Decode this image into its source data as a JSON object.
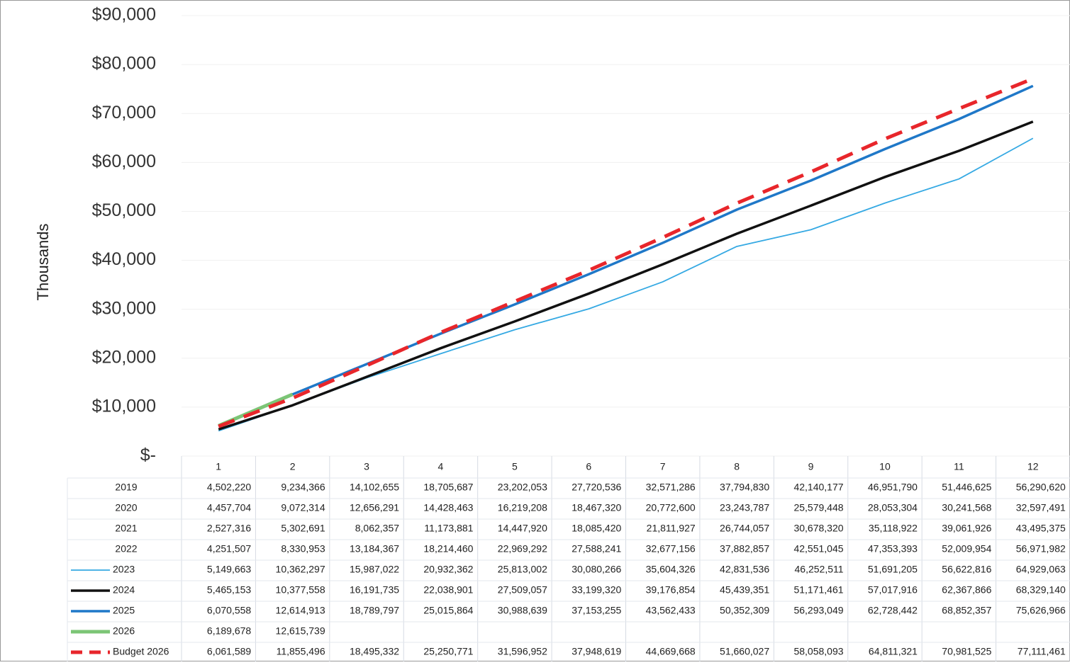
{
  "chart_data": {
    "type": "line",
    "y_axis_label": "Thousands",
    "categories": [
      "1",
      "2",
      "3",
      "4",
      "5",
      "6",
      "7",
      "8",
      "9",
      "10",
      "11",
      "12"
    ],
    "ylim": [
      0,
      90000000
    ],
    "yticks": [
      {
        "value": 0,
        "label": "$-"
      },
      {
        "value": 10000000,
        "label": "$10,000"
      },
      {
        "value": 20000000,
        "label": "$20,000"
      },
      {
        "value": 30000000,
        "label": "$30,000"
      },
      {
        "value": 40000000,
        "label": "$40,000"
      },
      {
        "value": 50000000,
        "label": "$50,000"
      },
      {
        "value": 60000000,
        "label": "$60,000"
      },
      {
        "value": 70000000,
        "label": "$70,000"
      },
      {
        "value": 80000000,
        "label": "$80,000"
      },
      {
        "value": 90000000,
        "label": "$90,000"
      }
    ],
    "grid": true,
    "series": [
      {
        "name": "2019",
        "values": [
          4502220,
          9234366,
          14102655,
          18705687,
          23202053,
          27720536,
          32571286,
          37794830,
          42140177,
          46951790,
          51446625,
          56290620
        ],
        "value_labels": [
          "4,502,220",
          "9,234,366",
          "14,102,655",
          "18,705,687",
          "23,202,053",
          "27,720,536",
          "32,571,286",
          "37,794,830",
          "42,140,177",
          "46,951,790",
          "51,446,625",
          "56,290,620"
        ]
      },
      {
        "name": "2020",
        "values": [
          4457704,
          9072314,
          12656291,
          14428463,
          16219208,
          18467320,
          20772600,
          23243787,
          25579448,
          28053304,
          30241568,
          32597491
        ],
        "value_labels": [
          "4,457,704",
          "9,072,314",
          "12,656,291",
          "14,428,463",
          "16,219,208",
          "18,467,320",
          "20,772,600",
          "23,243,787",
          "25,579,448",
          "28,053,304",
          "30,241,568",
          "32,597,491"
        ]
      },
      {
        "name": "2021",
        "values": [
          2527316,
          5302691,
          8062357,
          11173881,
          14447920,
          18085420,
          21811927,
          26744057,
          30678320,
          35118922,
          39061926,
          43495375
        ],
        "value_labels": [
          "2,527,316",
          "5,302,691",
          "8,062,357",
          "11,173,881",
          "14,447,920",
          "18,085,420",
          "21,811,927",
          "26,744,057",
          "30,678,320",
          "35,118,922",
          "39,061,926",
          "43,495,375"
        ]
      },
      {
        "name": "2022",
        "values": [
          4251507,
          8330953,
          13184367,
          18214460,
          22969292,
          27588241,
          32677156,
          37882857,
          42551045,
          47353393,
          52009954,
          56971982
        ],
        "value_labels": [
          "4,251,507",
          "8,330,953",
          "13,184,367",
          "18,214,460",
          "22,969,292",
          "27,588,241",
          "32,677,156",
          "37,882,857",
          "42,551,045",
          "47,353,393",
          "52,009,954",
          "56,971,982"
        ]
      },
      {
        "name": "2023",
        "color": "#35a9e3",
        "line_width": 1.8,
        "values": [
          5149663,
          10362297,
          15987022,
          20932362,
          25813002,
          30080266,
          35604326,
          42831536,
          46252511,
          51691205,
          56622816,
          64929063
        ],
        "value_labels": [
          "5,149,663",
          "10,362,297",
          "15,987,022",
          "20,932,362",
          "25,813,002",
          "30,080,266",
          "35,604,326",
          "42,831,536",
          "46,252,511",
          "51,691,205",
          "56,622,816",
          "64,929,063"
        ]
      },
      {
        "name": "2024",
        "color": "#111111",
        "line_width": 3.5,
        "values": [
          5465153,
          10377558,
          16191735,
          22038901,
          27509057,
          33199320,
          39176854,
          45439351,
          51171461,
          57017916,
          62367866,
          68329140
        ],
        "value_labels": [
          "5,465,153",
          "10,377,558",
          "16,191,735",
          "22,038,901",
          "27,509,057",
          "33,199,320",
          "39,176,854",
          "45,439,351",
          "51,171,461",
          "57,017,916",
          "62,367,866",
          "68,329,140"
        ]
      },
      {
        "name": "2025",
        "color": "#1f78c8",
        "line_width": 3.5,
        "values": [
          6070558,
          12614913,
          18789797,
          25015864,
          30988639,
          37153255,
          43562433,
          50352309,
          56293049,
          62728442,
          68852357,
          75626966
        ],
        "value_labels": [
          "6,070,558",
          "12,614,913",
          "18,789,797",
          "25,015,864",
          "30,988,639",
          "37,153,255",
          "43,562,433",
          "50,352,309",
          "56,293,049",
          "62,728,442",
          "68,852,357",
          "75,626,966"
        ]
      },
      {
        "name": "2026",
        "color": "#7cc576",
        "line_width": 5,
        "values": [
          6189678,
          12615739,
          null,
          null,
          null,
          null,
          null,
          null,
          null,
          null,
          null,
          null
        ],
        "value_labels": [
          "6,189,678",
          "12,615,739",
          null,
          null,
          null,
          null,
          null,
          null,
          null,
          null,
          null,
          null
        ]
      },
      {
        "name": "Budget 2026",
        "color": "#e8262b",
        "line_width": 5,
        "style": "dashed",
        "values": [
          6061589,
          11855496,
          18495332,
          25250771,
          31596952,
          37948619,
          44669668,
          51660027,
          58058093,
          64811321,
          70981525,
          77111461
        ],
        "value_labels": [
          "6,061,589",
          "11,855,496",
          "18,495,332",
          "25,250,771",
          "31,596,952",
          "37,948,619",
          "44,669,668",
          "51,660,027",
          "58,058,093",
          "64,811,321",
          "70,981,525",
          "77,111,461"
        ]
      }
    ]
  }
}
